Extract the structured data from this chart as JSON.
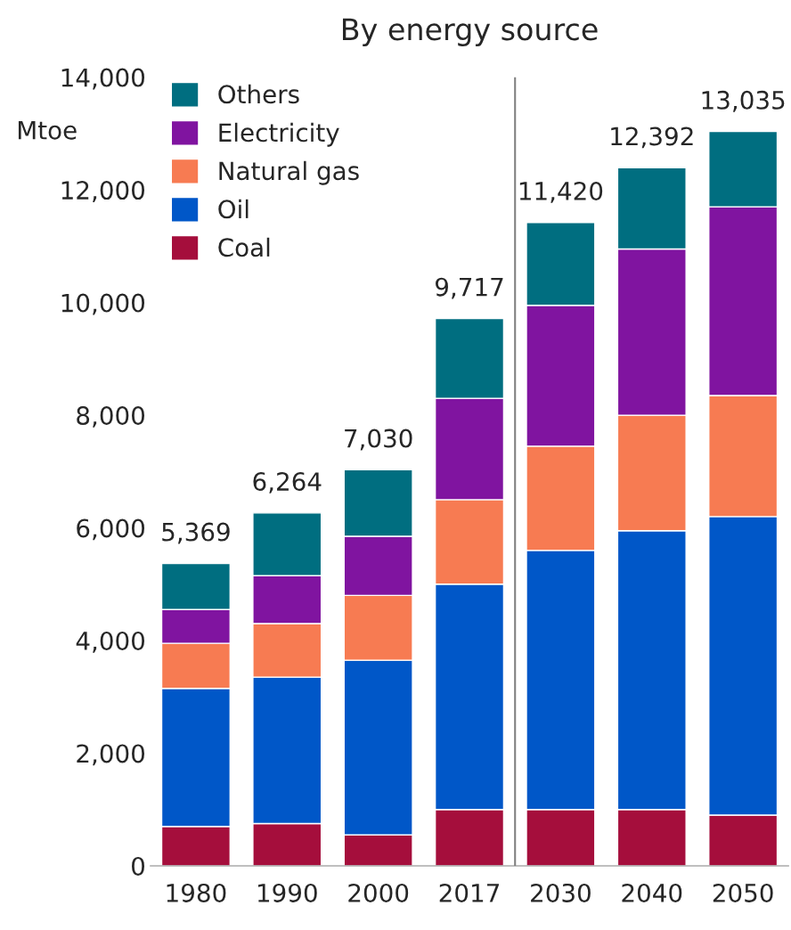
{
  "chart_data": {
    "type": "bar",
    "title": "By energy source",
    "ylabel": "Mtoe",
    "categories": [
      "1980",
      "1990",
      "2000",
      "2017",
      "2030",
      "2040",
      "2050"
    ],
    "stacked": true,
    "series": [
      {
        "name": "Coal",
        "color": "#a50e3c",
        "values": [
          700,
          750,
          550,
          1000,
          1000,
          1000,
          900
        ]
      },
      {
        "name": "Oil",
        "color": "#0057c8",
        "values": [
          2450,
          2600,
          3100,
          4000,
          4600,
          4950,
          5300
        ]
      },
      {
        "name": "Natural gas",
        "color": "#f77b52",
        "values": [
          800,
          950,
          1150,
          1500,
          1850,
          2050,
          2150
        ]
      },
      {
        "name": "Electricity",
        "color": "#8014a0",
        "values": [
          600,
          850,
          1050,
          1800,
          2500,
          2950,
          3350
        ]
      },
      {
        "name": "Others",
        "color": "#006e80",
        "values": [
          819,
          1114,
          1180,
          1417,
          1470,
          1442,
          1335
        ]
      }
    ],
    "totals": [
      "5,369",
      "6,264",
      "7,030",
      "9,717",
      "11,420",
      "12,392",
      "13,035"
    ],
    "ylim": [
      0,
      14000
    ],
    "yticks": [
      {
        "value": 0,
        "label": "0"
      },
      {
        "value": 2000,
        "label": "2,000"
      },
      {
        "value": 4000,
        "label": "4,000"
      },
      {
        "value": 6000,
        "label": "6,000"
      },
      {
        "value": 8000,
        "label": "8,000"
      },
      {
        "value": 10000,
        "label": "10,000"
      },
      {
        "value": 12000,
        "label": "12,000"
      },
      {
        "value": 14000,
        "label": "14,000"
      }
    ],
    "grid": false,
    "legend": "top left"
  }
}
